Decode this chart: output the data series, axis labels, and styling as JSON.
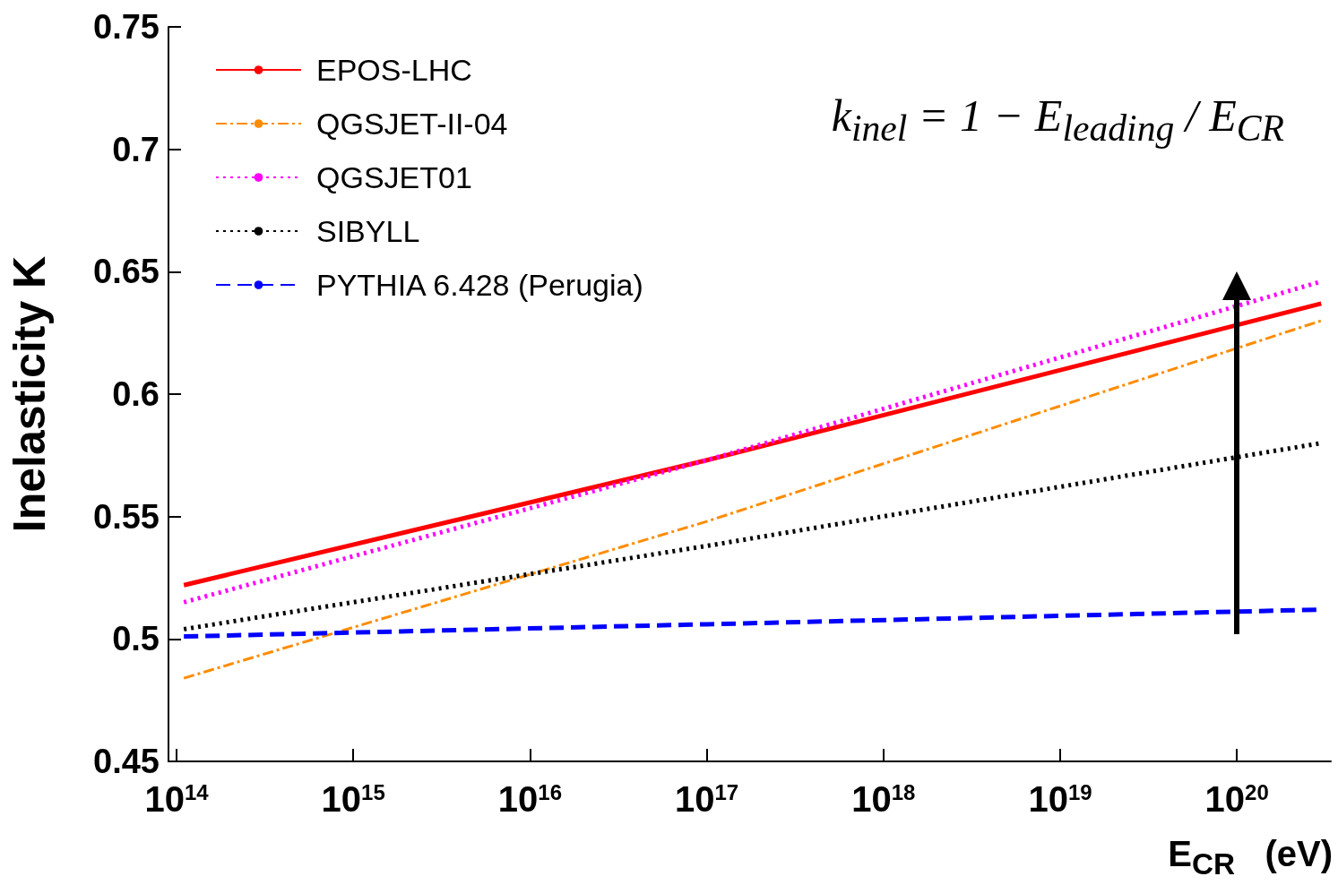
{
  "chart_data": {
    "type": "line",
    "xlabel": "E$_{CR}$   (eV)",
    "ylabel": "Inelasticity K",
    "annotations": [
      "k$_{inel}$ = 1 − E$_{leading}$ / E$_{CR}$"
    ],
    "log": "x",
    "xlim": [
      90000000000000.0,
      3.4e+20
    ],
    "xticks": [
      {
        "value": 100000000000000.0,
        "label": "10$^{14}$"
      },
      {
        "value": 1000000000000000.0,
        "label": "10$^{15}$"
      },
      {
        "value": 1e+16,
        "label": "10$^{16}$"
      },
      {
        "value": 1e+17,
        "label": "10$^{17}$"
      },
      {
        "value": 1e+18,
        "label": "10$^{18}$"
      },
      {
        "value": 1e+19,
        "label": "10$^{19}$"
      },
      {
        "value": 1e+20,
        "label": "10$^{20}$"
      }
    ],
    "ylim": [
      0.45,
      0.75
    ],
    "yticks": [
      0.45,
      0.5,
      0.55,
      0.6,
      0.65,
      0.7,
      0.75
    ],
    "grid": false,
    "legend": "top left",
    "marker": "none",
    "series": [
      {
        "name": "EPOS-LHC",
        "color": "#ff0000",
        "line_style": "solid",
        "x": [
          110000000000000.0,
          1e+17,
          3e+20
        ],
        "values": [
          0.522,
          0.573,
          0.637
        ]
      },
      {
        "name": "QGSJET-II-04",
        "color": "#ff8c00",
        "line_style": "dashdot",
        "x": [
          110000000000000.0,
          1e+17,
          3e+20
        ],
        "values": [
          0.484,
          0.548,
          0.63
        ]
      },
      {
        "name": "QGSJET01",
        "color": "#ff00ff",
        "line_style": "dotted",
        "x": [
          110000000000000.0,
          1e+17,
          3e+20
        ],
        "values": [
          0.515,
          0.573,
          0.646
        ]
      },
      {
        "name": "SIBYLL",
        "color": "#000000",
        "line_style": "dotted",
        "x": [
          110000000000000.0,
          1e+17,
          3e+20
        ],
        "values": [
          0.504,
          0.538,
          0.58
        ]
      },
      {
        "name": "PYTHIA 6.428 (Perugia)",
        "color": "#0000ff",
        "line_style": "dashed",
        "x": [
          110000000000000.0,
          1e+17,
          3e+20
        ],
        "values": [
          0.501,
          0.506,
          0.512
        ]
      }
    ]
  }
}
